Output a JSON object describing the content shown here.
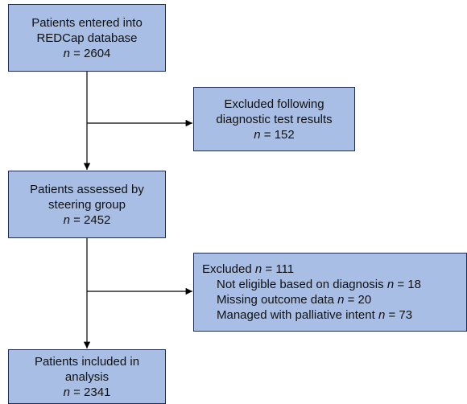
{
  "nodes": [
    {
      "lines": [
        "Patients entered into",
        "REDCap database",
        "n = 2604"
      ]
    },
    {
      "lines": [
        "Excluded following",
        "diagnostic test results",
        "n = 152"
      ]
    },
    {
      "lines": [
        "Patients assessed by",
        "steering group",
        "n = 2452"
      ]
    },
    {
      "lines": [
        "Excluded n = 111",
        "Not eligible based on diagnosis n = 18",
        "Missing outcome data n = 20",
        "Managed with palliative intent n = 73"
      ]
    },
    {
      "lines": [
        "Patients included in",
        "analysis",
        "n = 2341"
      ]
    }
  ]
}
